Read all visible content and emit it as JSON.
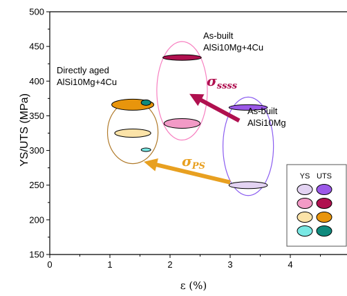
{
  "chart_data": {
    "type": "scatter",
    "xlabel": "ε (%)",
    "ylabel": "YS/UTS (MPa)",
    "xlim": [
      0,
      5
    ],
    "ylim": [
      150,
      500
    ],
    "x_ticks": [
      "0",
      "1",
      "2",
      "3",
      "4"
    ],
    "y_ticks": [
      "150",
      "200",
      "250",
      "300",
      "350",
      "400",
      "450",
      "500"
    ],
    "grid": false,
    "legend": {
      "placement": "bottom-right",
      "headers": [
        "YS",
        "UTS"
      ],
      "rows": [
        {
          "ys_color": "#e3d3f2",
          "uts_color": "#9b59e8"
        },
        {
          "ys_color": "#f29ac6",
          "uts_color": "#b0104f"
        },
        {
          "ys_color": "#fbe3a8",
          "uts_color": "#e8950c"
        },
        {
          "ys_color": "#79e8e4",
          "uts_color": "#0f8a7d"
        }
      ]
    },
    "groups": [
      {
        "label_lines": [
          "As-built",
          "AlSi10Mg"
        ],
        "outline_color": "#8a5cf0",
        "envelope": {
          "x": 3.3,
          "y": 306,
          "rx": 0.42,
          "ry": 71
        },
        "points": [
          {
            "kind": "YS",
            "x": 3.3,
            "y": 250,
            "color": "#e3d3f2",
            "rx": 0.32,
            "ry": 5
          },
          {
            "kind": "UTS",
            "x": 3.3,
            "y": 362,
            "color": "#9b59e8",
            "rx": 0.32,
            "ry": 4
          }
        ]
      },
      {
        "label_lines": [
          "As-built",
          "AlSi10Mg+4Cu"
        ],
        "outline_color": "#f77fc0",
        "envelope": {
          "x": 2.2,
          "y": 386,
          "rx": 0.42,
          "ry": 71
        },
        "points": [
          {
            "kind": "YS",
            "x": 2.2,
            "y": 339,
            "color": "#f29ac6",
            "rx": 0.3,
            "ry": 7
          },
          {
            "kind": "UTS",
            "x": 2.2,
            "y": 434,
            "color": "#b0104f",
            "rx": 0.32,
            "ry": 4
          }
        ]
      },
      {
        "label_lines": [
          "Directly aged",
          "AlSi10Mg+4Cu"
        ],
        "outline_color": "#b07a2a",
        "envelope": {
          "x": 1.38,
          "y": 326,
          "rx": 0.42,
          "ry": 45
        },
        "points": [
          {
            "kind": "YS",
            "x": 1.38,
            "y": 325,
            "color": "#fbe3a8",
            "rx": 0.3,
            "ry": 6
          },
          {
            "kind": "UTS",
            "x": 1.38,
            "y": 366,
            "color": "#e8950c",
            "rx": 0.35,
            "ry": 8
          },
          {
            "kind": "YS",
            "x": 1.6,
            "y": 301,
            "color": "#79e8e4",
            "rx": 0.08,
            "ry": 2.5
          },
          {
            "kind": "UTS",
            "x": 1.6,
            "y": 369,
            "color": "#0f8a7d",
            "rx": 0.08,
            "ry": 4
          }
        ]
      }
    ],
    "annotations": [
      {
        "base": "σ",
        "sub": "ssss",
        "color": "#b0104f",
        "from": [
          3.15,
          343
        ],
        "to": [
          2.4,
          378
        ]
      },
      {
        "base": "σ",
        "sub": "PS",
        "color": "#e8a020",
        "from": [
          3.0,
          254
        ],
        "to": [
          1.65,
          282
        ]
      }
    ]
  }
}
